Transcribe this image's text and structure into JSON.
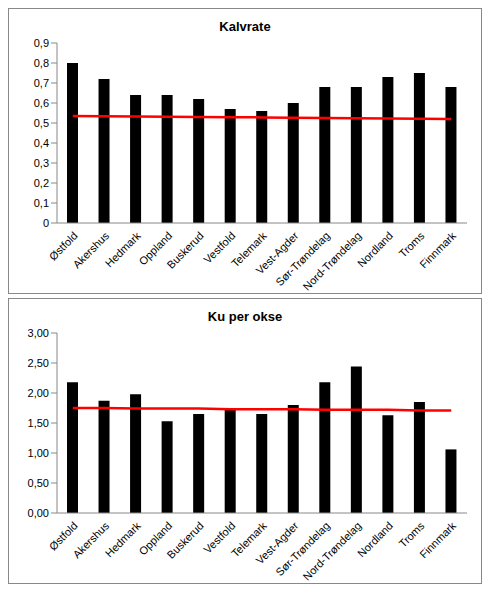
{
  "chart_data": [
    {
      "type": "bar",
      "title": "Kalvrate",
      "categories": [
        "Østfold",
        "Akershus",
        "Hedmark",
        "Oppland",
        "Buskerud",
        "Vestfold",
        "Telemark",
        "Vest-Agder",
        "Sør-Trøndelag",
        "Nord-Trøndelag",
        "Nordland",
        "Troms",
        "Finnmark"
      ],
      "series": [
        {
          "color": "#000000",
          "values": [
            0.8,
            0.72,
            0.64,
            0.64,
            0.62,
            0.57,
            0.56,
            0.6,
            0.68,
            0.68,
            0.73,
            0.75,
            0.68
          ]
        },
        {
          "type": "line",
          "color": "#ff0000",
          "values": [
            0.535,
            0.534,
            0.532,
            0.531,
            0.53,
            0.529,
            0.528,
            0.526,
            0.525,
            0.524,
            0.523,
            0.521,
            0.52
          ]
        }
      ],
      "ylim": [
        0,
        0.9
      ],
      "yticks": [
        0,
        {
          "value": 0.1,
          "label": "0,1"
        },
        {
          "value": 0.2,
          "label": "0,2"
        },
        {
          "value": 0.3,
          "label": "0,3"
        },
        {
          "value": 0.4,
          "label": "0,4"
        },
        {
          "value": 0.5,
          "label": "0,5"
        },
        {
          "value": 0.6,
          "label": "0,6"
        },
        {
          "value": 0.7,
          "label": "0,7"
        },
        {
          "value": 0.8,
          "label": "0,8"
        },
        {
          "value": 0.9,
          "label": "0,9"
        }
      ],
      "grid": false
    },
    {
      "type": "bar",
      "title": "Ku per okse",
      "categories": [
        "Østfold",
        "Akershus",
        "Hedmark",
        "Oppland",
        "Buskerud",
        "Vestfold",
        "Telemark",
        "Vest-Agder",
        "Sør-Trøndelag",
        "Nord-Trøndelag",
        "Nordland",
        "Troms",
        "Finnmark"
      ],
      "series": [
        {
          "color": "#000000",
          "values": [
            2.18,
            1.87,
            1.98,
            1.53,
            1.65,
            1.72,
            1.65,
            1.8,
            2.18,
            2.44,
            1.63,
            1.85,
            1.06
          ]
        },
        {
          "type": "line",
          "color": "#ff0000",
          "values": [
            1.75,
            1.75,
            1.74,
            1.74,
            1.74,
            1.73,
            1.73,
            1.73,
            1.72,
            1.72,
            1.72,
            1.71,
            1.71
          ]
        }
      ],
      "ylim": [
        0,
        3
      ],
      "yticks": [
        {
          "value": 0,
          "label": "0,00"
        },
        {
          "value": 0.5,
          "label": "0,50"
        },
        {
          "value": 1,
          "label": "1,00"
        },
        {
          "value": 1.5,
          "label": "1,50"
        },
        {
          "value": 2,
          "label": "2,00"
        },
        {
          "value": 2.5,
          "label": "2,50"
        },
        {
          "value": 3,
          "label": "3,00"
        }
      ],
      "grid": false
    }
  ]
}
